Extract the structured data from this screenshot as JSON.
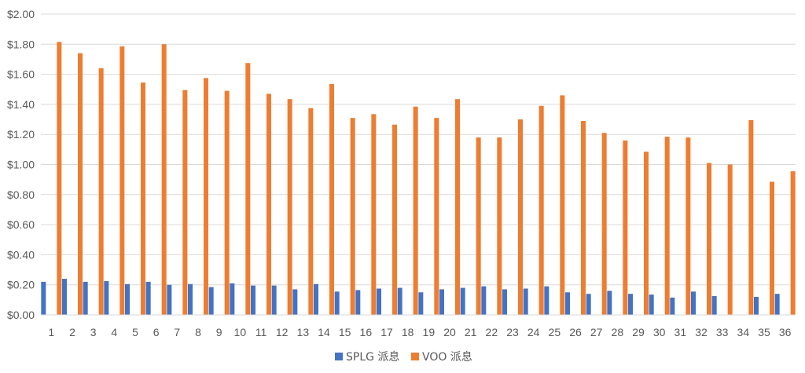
{
  "chart_data": {
    "type": "bar",
    "title": "",
    "xlabel": "",
    "ylabel": "",
    "ylim": [
      0,
      2.0
    ],
    "ytick_step": 0.2,
    "ytick_prefix": "$",
    "grid": true,
    "legend_position": "bottom",
    "categories": [
      "1",
      "2",
      "3",
      "4",
      "5",
      "6",
      "7",
      "8",
      "9",
      "10",
      "11",
      "12",
      "13",
      "14",
      "15",
      "16",
      "17",
      "18",
      "19",
      "20",
      "21",
      "22",
      "23",
      "24",
      "25",
      "26",
      "27",
      "28",
      "29",
      "30",
      "31",
      "32",
      "33",
      "34",
      "35",
      "36"
    ],
    "series": [
      {
        "name": "SPLG 派息",
        "color": "#4472C4",
        "values": [
          0.22,
          0.24,
          0.22,
          0.225,
          0.205,
          0.22,
          0.2,
          0.205,
          0.185,
          0.21,
          0.195,
          0.195,
          0.17,
          0.205,
          0.155,
          0.165,
          0.175,
          0.18,
          0.15,
          0.17,
          0.18,
          0.19,
          0.17,
          0.175,
          0.19,
          0.15,
          0.14,
          0.16,
          0.14,
          0.135,
          0.115,
          0.155,
          0.125,
          0.0,
          0.12,
          0.14
        ]
      },
      {
        "name": "VOO 派息",
        "color": "#ED7D31",
        "values": [
          1.815,
          1.74,
          1.64,
          1.785,
          1.545,
          1.8,
          1.495,
          1.575,
          1.49,
          1.675,
          1.47,
          1.435,
          1.375,
          1.535,
          1.31,
          1.335,
          1.265,
          1.385,
          1.31,
          1.435,
          1.18,
          1.18,
          1.3,
          1.39,
          1.46,
          1.29,
          1.21,
          1.16,
          1.085,
          1.185,
          1.18,
          1.01,
          1.0,
          1.295,
          0.885,
          0.955
        ]
      }
    ]
  }
}
